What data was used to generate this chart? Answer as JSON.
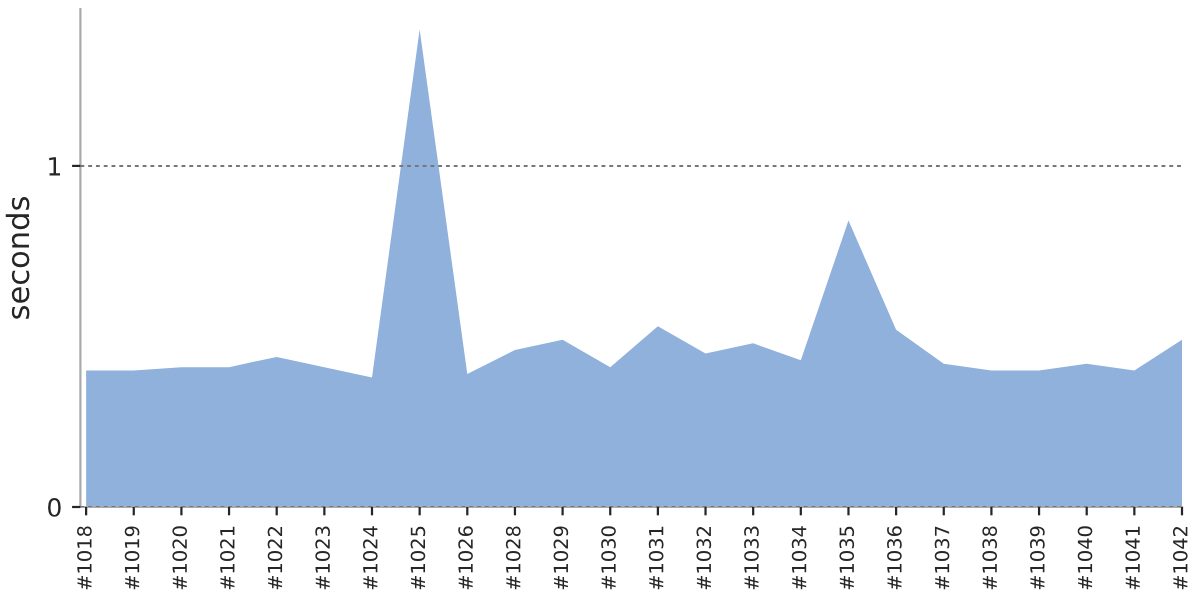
{
  "chart_data": {
    "type": "area",
    "ylabel": "seconds",
    "categories": [
      "#1018",
      "#1019",
      "#1020",
      "#1021",
      "#1022",
      "#1023",
      "#1024",
      "#1025",
      "#1026",
      "#1028",
      "#1029",
      "#1030",
      "#1031",
      "#1032",
      "#1033",
      "#1034",
      "#1035",
      "#1036",
      "#1037",
      "#1038",
      "#1039",
      "#1040",
      "#1041",
      "#1042"
    ],
    "series": [
      {
        "color": "#8fb1dc",
        "values": [
          0.4,
          0.4,
          0.41,
          0.41,
          0.44,
          0.41,
          0.38,
          1.4,
          0.39,
          0.46,
          0.49,
          0.41,
          0.53,
          0.45,
          0.48,
          0.43,
          0.84,
          0.52,
          0.42,
          0.4,
          0.4,
          0.42,
          0.4,
          0.49
        ]
      }
    ],
    "ylim": [
      0,
      1.46
    ],
    "yticks": [
      0,
      1
    ],
    "grid": "y"
  }
}
